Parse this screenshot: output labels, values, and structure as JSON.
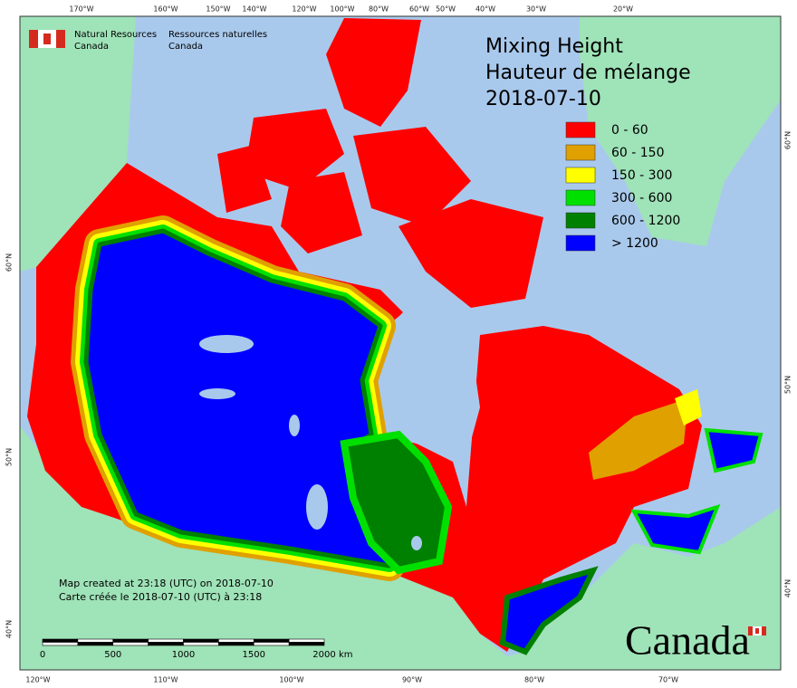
{
  "organization": {
    "english": [
      "Natural Resources",
      "Canada"
    ],
    "french": [
      "Ressources naturelles",
      "Canada"
    ]
  },
  "title": [
    "Mixing Height",
    "Hauteur de mélange",
    "2018-07-10"
  ],
  "legend": [
    {
      "label": "0 - 60",
      "color": "#ff0000"
    },
    {
      "label": "60 - 150",
      "color": "#e0a000"
    },
    {
      "label": "150 - 300",
      "color": "#ffff00"
    },
    {
      "label": "300 - 600",
      "color": "#00e000"
    },
    {
      "label": "600 - 1200",
      "color": "#008000"
    },
    {
      "label": "> 1200",
      "color": "#0000ff"
    }
  ],
  "top_longitude_labels": [
    "170°W",
    "160°W",
    "150°W",
    "140°W",
    "120°W",
    "100°W",
    "80°W",
    "60°W",
    "50°W",
    "40°W",
    "30°W",
    "20°W"
  ],
  "bottom_longitude_labels": [
    "120°W",
    "110°W",
    "100°W",
    "90°W",
    "80°W",
    "70°W"
  ],
  "left_latitude_labels": [
    "60°N",
    "50°N",
    "40°N"
  ],
  "right_latitude_labels": [
    "60°N",
    "50°N",
    "40°N"
  ],
  "notes": [
    "Map created at 23:18 (UTC) on 2018-07-10",
    "Carte créée le 2018-07-10 (UTC) à 23:18"
  ],
  "scale_bar": {
    "ticks": [
      0,
      500,
      1000,
      1500,
      2000
    ],
    "unit": "km"
  },
  "wordmark": "Canada"
}
